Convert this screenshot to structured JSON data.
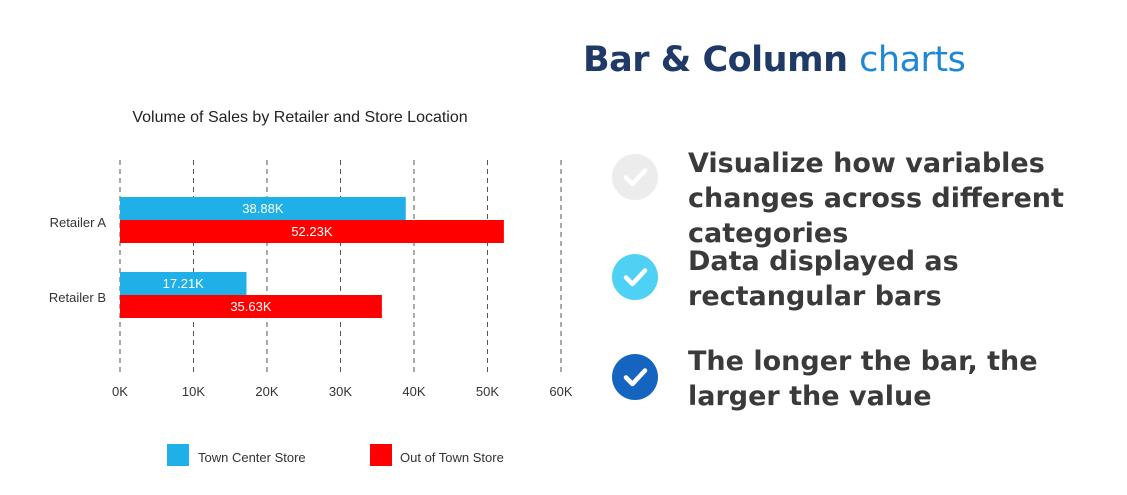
{
  "heading": {
    "bold": "Bar & Column",
    "accent": "charts"
  },
  "bullets": [
    {
      "text": "Visualize how variables changes across different categories",
      "check_color": "#ececec",
      "state": "faded"
    },
    {
      "text": "Data displayed as rectangular bars",
      "check_color": "#4fd1f5",
      "state": "light"
    },
    {
      "text": "The longer the bar, the larger the value",
      "check_color": "#1565c0",
      "state": "dark"
    }
  ],
  "icons": {
    "bullet_icon": "check-circle-icon"
  },
  "colors": {
    "heading": "#1f3a66",
    "heading_accent": "#1e88d6",
    "town_center": "#1fb0e8",
    "out_of_town": "#ff0000"
  },
  "chart_data": {
    "type": "bar",
    "orientation": "horizontal",
    "title": "Volume of Sales by Retailer and Store Location",
    "categories": [
      "Retailer A",
      "Retailer B"
    ],
    "series": [
      {
        "name": "Town Center Store",
        "values": [
          38.88,
          17.21
        ],
        "labels": [
          "38.88K",
          "17.21K"
        ],
        "color": "#1fb0e8"
      },
      {
        "name": "Out of Town Store",
        "values": [
          52.23,
          35.63
        ],
        "labels": [
          "52.23K",
          "35.63K"
        ],
        "color": "#ff0000"
      }
    ],
    "xlim": [
      0,
      60
    ],
    "x_ticks": [
      0,
      10,
      20,
      30,
      40,
      50,
      60
    ],
    "x_tick_labels": [
      "0K",
      "10K",
      "20K",
      "30K",
      "40K",
      "50K",
      "60K"
    ],
    "grid": "vertical dashed",
    "legend_position": "bottom"
  }
}
